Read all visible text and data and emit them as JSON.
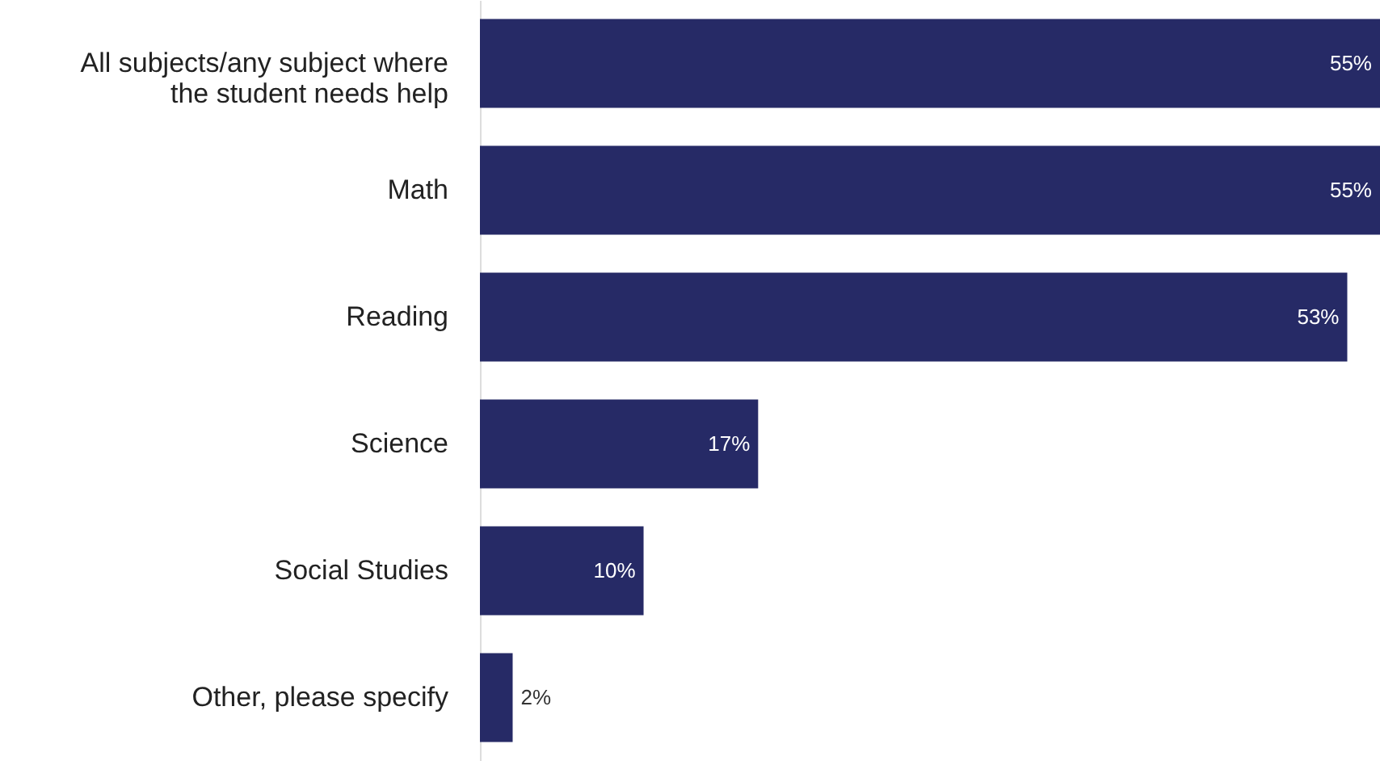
{
  "chart_data": {
    "type": "bar",
    "orientation": "horizontal",
    "categories": [
      "All subjects/any subject where the student needs help",
      "Math",
      "Reading",
      "Science",
      "Social Studies",
      "Other, please specify"
    ],
    "values": [
      55,
      55,
      53,
      17,
      10,
      2
    ],
    "value_labels": [
      "55%",
      "55%",
      "53%",
      "17%",
      "10%",
      "2%"
    ],
    "color": "#262a66"
  }
}
